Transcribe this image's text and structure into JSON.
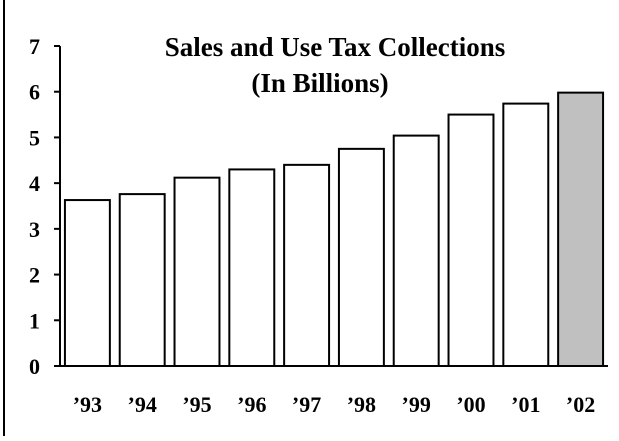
{
  "chart_data": {
    "type": "bar",
    "title": "Sales and Use Tax Collections",
    "subtitle": "(In Billions)",
    "xlabel": "",
    "ylabel": "",
    "categories": [
      "’93",
      "’94",
      "’95",
      "’96",
      "’97",
      "’98",
      "’99",
      "’00",
      "’01",
      "’02"
    ],
    "values": [
      3.63,
      3.76,
      4.12,
      4.3,
      4.4,
      4.75,
      5.04,
      5.5,
      5.74,
      5.98
    ],
    "ylim": [
      0,
      7
    ],
    "yticks": [
      "0",
      "1",
      "2",
      "3",
      "4",
      "5",
      "6",
      "7"
    ],
    "grid": false,
    "bar_fill": "#ffffff",
    "highlight_index": 9,
    "highlight_fill": "#c0c0c0",
    "bar_stroke": "#000000"
  }
}
